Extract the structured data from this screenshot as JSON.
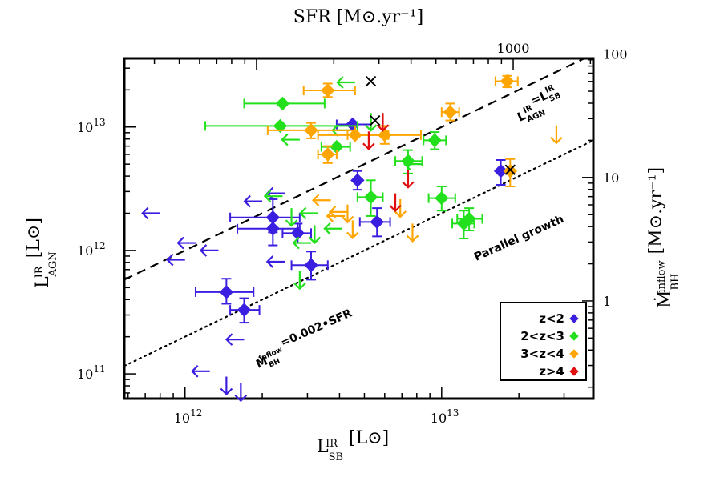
{
  "chart_data": {
    "type": "scatter",
    "x_scale": "log",
    "y_scale": "log",
    "xlabel": {
      "main": "L",
      "sup": "IR",
      "sub": "SB",
      "unit": "[L⊙]"
    },
    "ylabel": {
      "main": "L",
      "sup": "IR",
      "sub": "AGN",
      "unit": "[L⊙]"
    },
    "top_axis_label": "SFR  [M⊙.yr⁻¹]",
    "right_axis_label": {
      "main": "Ṁ",
      "sup": "inflow",
      "sub": "BH",
      "unit": "[M⊙.yr⁻¹]"
    },
    "xlim": [
      580000000000.0,
      39000000000000.0
    ],
    "ylim": [
      63000000000.0,
      36000000000000.0
    ],
    "x_ticks": [
      {
        "value": 1000000000000.0,
        "label": "10",
        "exp": "12"
      },
      {
        "value": 10000000000000.0,
        "label": "10",
        "exp": "13"
      }
    ],
    "y_ticks": [
      {
        "value": 100000000000.0,
        "label": "10",
        "exp": "11"
      },
      {
        "value": 1000000000000.0,
        "label": "10",
        "exp": "12"
      },
      {
        "value": 10000000000000.0,
        "label": "10",
        "exp": "13"
      }
    ],
    "top_ticks": [
      {
        "value": 1000,
        "label": "1000"
      }
    ],
    "right_ticks": [
      {
        "value": 1,
        "label": "1"
      },
      {
        "value": 10,
        "label": "10"
      },
      {
        "value": 100,
        "label": "100"
      }
    ],
    "top_axis_factor": 19000000000.0,
    "right_axis_factor": 390000000000.0,
    "legend": {
      "position": "bottom-right",
      "entries": [
        {
          "label": "z<2",
          "color": "#3a1fe0"
        },
        {
          "label": "2<z<3",
          "color": "#22e01c"
        },
        {
          "label": "3<z<4",
          "color": "#ffa500"
        },
        {
          "label": "z>4",
          "color": "#e01010"
        }
      ]
    },
    "lines": [
      {
        "name": "equality",
        "style": "dashed",
        "ratio": 1.0
      },
      {
        "name": "parallel",
        "style": "dotted",
        "ratio": 0.2
      }
    ],
    "annotations": {
      "equality": {
        "main": "L",
        "sup1": "IR",
        "sub1": "AGN",
        "eq": "=L",
        "sup2": "IR",
        "sub2": "SB"
      },
      "parallel": "Parallel growth",
      "relation": {
        "main": "Ṁ",
        "sup": "inflow",
        "sub": "BH",
        "rest": "=0.002•SFR"
      }
    },
    "series": [
      {
        "name": "z<2",
        "color": "#3a1fe0",
        "points": [
          {
            "x": 4500000000000.0,
            "y": 10500000000000.0,
            "xlo": 3900000000000.0,
            "xhi": 5300000000000.0
          },
          {
            "x": 4700000000000.0,
            "y": 3700000000000.0,
            "ylo": 3100000000000.0,
            "yhi": 4400000000000.0
          },
          {
            "x": 5600000000000.0,
            "y": 1700000000000.0,
            "xlo": 4800000000000.0,
            "xhi": 6300000000000.0,
            "ylo": 1300000000000.0,
            "yhi": 2200000000000.0
          },
          {
            "x": 2200000000000.0,
            "y": 1850000000000.0,
            "xlo": 1500000000000.0,
            "xhi": 2800000000000.0,
            "ylo": 1400000000000.0,
            "yhi": 2600000000000.0
          },
          {
            "x": 2200000000000.0,
            "y": 1500000000000.0,
            "xlo": 1600000000000.0,
            "xhi": 2800000000000.0,
            "ylo": 1100000000000.0,
            "yhi": 1900000000000.0
          },
          {
            "x": 2750000000000.0,
            "y": 1380000000000.0,
            "xlo": 2400000000000.0,
            "xhi": 3100000000000.0,
            "ylo": 1150000000000.0,
            "yhi": 1650000000000.0
          },
          {
            "x": 3100000000000.0,
            "y": 760000000000.0,
            "xlo": 2600000000000.0,
            "xhi": 3600000000000.0,
            "ylo": 580000000000.0,
            "yhi": 980000000000.0
          },
          {
            "x": 1450000000000.0,
            "y": 460000000000.0,
            "xlo": 1100000000000.0,
            "xhi": 1850000000000.0,
            "ylo": 370000000000.0,
            "yhi": 590000000000.0
          },
          {
            "x": 1700000000000.0,
            "y": 330000000000.0,
            "xlo": 1500000000000.0,
            "xhi": 1950000000000.0,
            "ylo": 260000000000.0,
            "yhi": 410000000000.0
          },
          {
            "x": 17000000000000.0,
            "y": 4400000000000.0,
            "ylo": 3400000000000.0,
            "yhi": 5400000000000.0
          }
        ],
        "upper_limits": [
          {
            "x": 800000000000.0,
            "y": 2000000000000.0,
            "dir": "left"
          },
          {
            "x": 1100000000000.0,
            "y": 1150000000000.0,
            "dir": "left"
          },
          {
            "x": 1000000000000.0,
            "y": 840000000000.0,
            "dir": "left"
          },
          {
            "x": 1350000000000.0,
            "y": 1000000000000.0,
            "dir": "left"
          },
          {
            "x": 2000000000000.0,
            "y": 2500000000000.0,
            "dir": "left"
          },
          {
            "x": 2450000000000.0,
            "y": 2900000000000.0,
            "dir": "left"
          },
          {
            "x": 2450000000000.0,
            "y": 810000000000.0,
            "dir": "left"
          },
          {
            "x": 1700000000000.0,
            "y": 190000000000.0,
            "dir": "left"
          },
          {
            "x": 1450000000000.0,
            "y": 95000000000.0,
            "dir": "down"
          },
          {
            "x": 1650000000000.0,
            "y": 84000000000.0,
            "dir": "down"
          },
          {
            "x": 1250000000000.0,
            "y": 105000000000.0,
            "dir": "left"
          }
        ]
      },
      {
        "name": "2<z<3",
        "color": "#22e01c",
        "points": [
          {
            "x": 2400000000000.0,
            "y": 15500000000000.0,
            "xlo": 1700000000000.0,
            "xhi": 3500000000000.0
          },
          {
            "x": 2350000000000.0,
            "y": 10200000000000.0,
            "xlo": 1200000000000.0,
            "xhi": 4700000000000.0
          },
          {
            "x": 3900000000000.0,
            "y": 6900000000000.0,
            "xlo": 3400000000000.0,
            "xhi": 4400000000000.0
          },
          {
            "x": 5300000000000.0,
            "y": 2700000000000.0,
            "xlo": 4700000000000.0,
            "xhi": 5900000000000.0,
            "ylo": 1900000000000.0,
            "yhi": 3700000000000.0
          },
          {
            "x": 7400000000000.0,
            "y": 5300000000000.0,
            "xlo": 6600000000000.0,
            "xhi": 8400000000000.0,
            "ylo": 4200000000000.0,
            "yhi": 6500000000000.0
          },
          {
            "x": 9400000000000.0,
            "y": 7800000000000.0,
            "xlo": 8500000000000.0,
            "xhi": 10400000000000.0,
            "ylo": 6600000000000.0,
            "yhi": 9100000000000.0
          },
          {
            "x": 10000000000000.0,
            "y": 2650000000000.0,
            "xlo": 8900000000000.0,
            "xhi": 11300000000000.0,
            "ylo": 2100000000000.0,
            "yhi": 3300000000000.0
          },
          {
            "x": 12200000000000.0,
            "y": 1650000000000.0,
            "xlo": 11000000000000.0,
            "xhi": 13400000000000.0,
            "ylo": 1250000000000.0,
            "yhi": 2100000000000.0
          },
          {
            "x": 12800000000000.0,
            "y": 1800000000000.0,
            "xlo": 11500000000000.0,
            "xhi": 14400000000000.0,
            "ylo": 1450000000000.0,
            "yhi": 2200000000000.0
          }
        ],
        "upper_limits": [
          {
            "x": 4600000000000.0,
            "y": 23000000000000.0,
            "dir": "left"
          },
          {
            "x": 2800000000000.0,
            "y": 7900000000000.0,
            "dir": "left"
          },
          {
            "x": 2400000000000.0,
            "y": 2750000000000.0,
            "dir": "left"
          },
          {
            "x": 2600000000000.0,
            "y": 2200000000000.0,
            "dir": "down"
          },
          {
            "x": 3300000000000.0,
            "y": 2000000000000.0,
            "dir": "left"
          },
          {
            "x": 3200000000000.0,
            "y": 1600000000000.0,
            "dir": "down"
          },
          {
            "x": 4100000000000.0,
            "y": 1500000000000.0,
            "dir": "left"
          },
          {
            "x": 3100000000000.0,
            "y": 1150000000000.0,
            "dir": "left"
          },
          {
            "x": 2800000000000.0,
            "y": 680000000000.0,
            "dir": "down"
          },
          {
            "x": 5300000000000.0,
            "y": 13000000000000.0,
            "dir": "down"
          },
          {
            "x": 8400000000000.0,
            "y": 5000000000000.0,
            "dir": "left"
          },
          {
            "x": 4400000000000.0,
            "y": 9400000000000.0,
            "dir": "left"
          }
        ]
      },
      {
        "name": "3<z<4",
        "color": "#ffa500",
        "points": [
          {
            "x": 3600000000000.0,
            "y": 19800000000000.0,
            "xlo": 2900000000000.0,
            "xhi": 4600000000000.0,
            "ylo": 17500000000000.0,
            "yhi": 22500000000000.0
          },
          {
            "x": 3100000000000.0,
            "y": 9400000000000.0,
            "xlo": 2100000000000.0,
            "xhi": 4600000000000.0,
            "ylo": 8100000000000.0,
            "yhi": 10800000000000.0
          },
          {
            "x": 4600000000000.0,
            "y": 8600000000000.0,
            "xlo": 3300000000000.0,
            "xhi": 6200000000000.0
          },
          {
            "x": 6000000000000.0,
            "y": 8600000000000.0,
            "xlo": 4300000000000.0,
            "xhi": 8300000000000.0,
            "ylo": 7300000000000.0,
            "yhi": 10200000000000.0
          },
          {
            "x": 3600000000000.0,
            "y": 6000000000000.0,
            "xlo": 3300000000000.0,
            "xhi": 3900000000000.0,
            "ylo": 5100000000000.0,
            "yhi": 7000000000000.0
          },
          {
            "x": 10800000000000.0,
            "y": 13200000000000.0,
            "xlo": 10000000000000.0,
            "xhi": 11700000000000.0,
            "ylo": 11300000000000.0,
            "yhi": 15500000000000.0
          },
          {
            "x": 18000000000000.0,
            "y": 23500000000000.0,
            "xlo": 16200000000000.0,
            "xhi": 19800000000000.0,
            "ylo": 21000000000000.0,
            "yhi": 26000000000000.0
          },
          {
            "x": 18500000000000.0,
            "y": 4400000000000.0,
            "ylo": 3300000000000.0,
            "yhi": 5500000000000.0
          }
        ],
        "upper_limits": [
          {
            "x": 4300000000000.0,
            "y": 2350000000000.0,
            "dir": "down"
          },
          {
            "x": 3700000000000.0,
            "y": 2550000000000.0,
            "dir": "left"
          },
          {
            "x": 4200000000000.0,
            "y": 1900000000000.0,
            "dir": "left"
          },
          {
            "x": 4500000000000.0,
            "y": 1750000000000.0,
            "dir": "down"
          },
          {
            "x": 6900000000000.0,
            "y": 2600000000000.0,
            "dir": "down"
          },
          {
            "x": 7700000000000.0,
            "y": 1650000000000.0,
            "dir": "down"
          },
          {
            "x": 28000000000000.0,
            "y": 10300000000000.0,
            "dir": "down"
          },
          {
            "x": 4300000000000.0,
            "y": 2050000000000.0,
            "dir": "left"
          }
        ]
      },
      {
        "name": "z>4",
        "color": "#e01010",
        "points": [],
        "upper_limits": [
          {
            "x": 5900000000000.0,
            "y": 13000000000000.0,
            "dir": "down"
          },
          {
            "x": 5200000000000.0,
            "y": 9200000000000.0,
            "dir": "down"
          },
          {
            "x": 6600000000000.0,
            "y": 2900000000000.0,
            "dir": "down"
          },
          {
            "x": 7400000000000.0,
            "y": 4500000000000.0,
            "dir": "down"
          }
        ]
      }
    ],
    "crosses": [
      {
        "x": 5300000000000.0,
        "y": 23500000000000.0
      },
      {
        "x": 5500000000000.0,
        "y": 11300000000000.0
      },
      {
        "x": 18500000000000.0,
        "y": 4500000000000.0
      }
    ]
  }
}
